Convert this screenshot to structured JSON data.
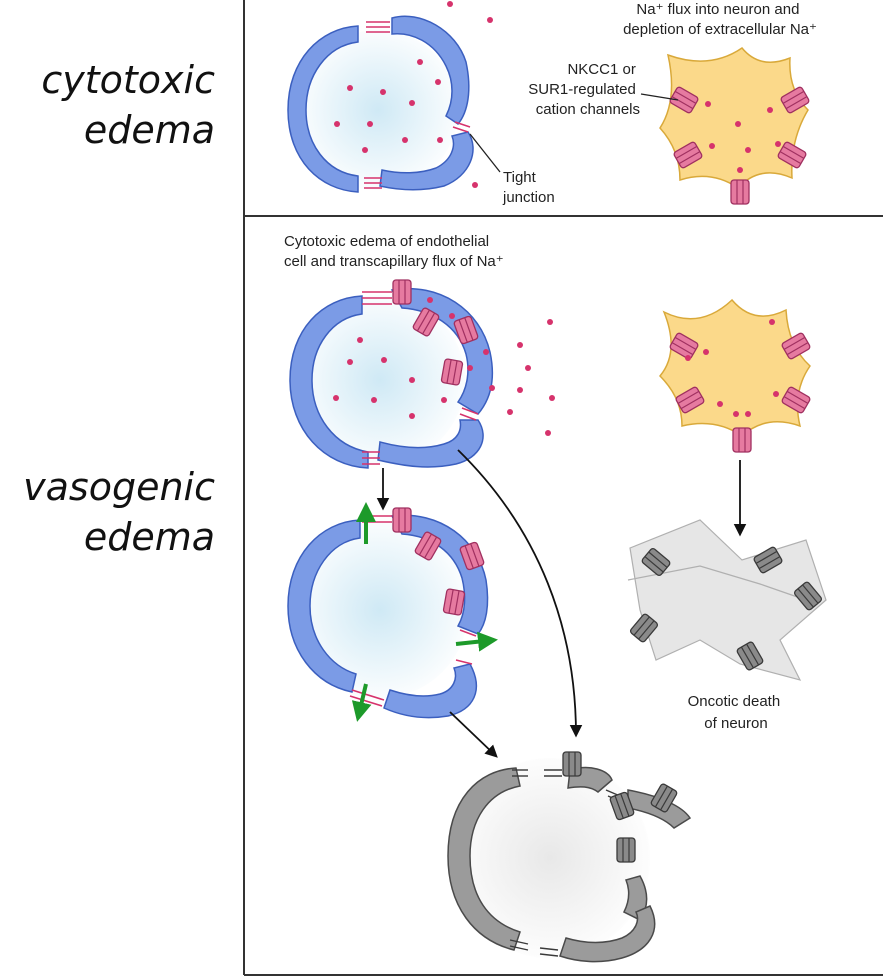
{
  "side_labels": {
    "cytotoxic": [
      "cytotoxic",
      "edema"
    ],
    "vasogenic": [
      "vasogenic",
      "edema"
    ]
  },
  "annotations": {
    "na_flux": [
      "Na⁺ flux into neuron and",
      "depletion of extracellular Na⁺"
    ],
    "channels": [
      "NKCC1 or",
      "SUR1-regulated",
      "cation channels"
    ],
    "tight_junction": [
      "Tight",
      "junction"
    ],
    "endothelial_edema": [
      "Cytotoxic edema of endothelial",
      "cell and transcapillary flux of Na⁺"
    ],
    "oncotic_death": [
      "Oncotic death",
      "of neuron"
    ]
  },
  "colors": {
    "endothelium": "#7b9be6",
    "endothelium_stroke": "#3b5fbf",
    "lumen": "#d7eef7",
    "sodium": "#d6336c",
    "channel": "#e67aa0",
    "neuron": "#fbd98a",
    "neuron_stroke": "#d9a93a",
    "dead": "#9b9b9b",
    "dead_light": "#e6e6e6",
    "arrow_green": "#1d9a2a",
    "frame": "#333333"
  }
}
